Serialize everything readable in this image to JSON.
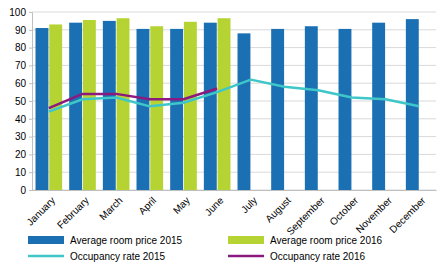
{
  "chart_data": {
    "type": "bar",
    "categories": [
      "January",
      "February",
      "March",
      "April",
      "May",
      "June",
      "July",
      "August",
      "September",
      "October",
      "November",
      "December"
    ],
    "series": [
      {
        "name": "Average room price 2015",
        "type": "bar",
        "color": "#1a70b3",
        "values": [
          91,
          94,
          95,
          90.5,
          90.5,
          94,
          88,
          90.5,
          92,
          90.5,
          94,
          96
        ]
      },
      {
        "name": "Average room price 2016",
        "type": "bar",
        "color": "#b5d333",
        "values": [
          93,
          95.5,
          96.5,
          92,
          94.5,
          96.5,
          null,
          null,
          null,
          null,
          null,
          null
        ]
      },
      {
        "name": "Occupancy rate 2015",
        "type": "line",
        "color": "#3ec6c8",
        "values": [
          44,
          51,
          52,
          47,
          49,
          55,
          62,
          58,
          56,
          52,
          51,
          47
        ]
      },
      {
        "name": "Occupancy rate 2016",
        "type": "line",
        "color": "#8a1a7e",
        "values": [
          46,
          54,
          54,
          51,
          51,
          57,
          null,
          null,
          null,
          null,
          null,
          null
        ]
      }
    ],
    "ylim": [
      0,
      100
    ],
    "yticks": [
      0,
      10,
      20,
      30,
      40,
      50,
      60,
      70,
      80,
      90,
      100
    ],
    "grid": true,
    "legend": "bottom"
  }
}
